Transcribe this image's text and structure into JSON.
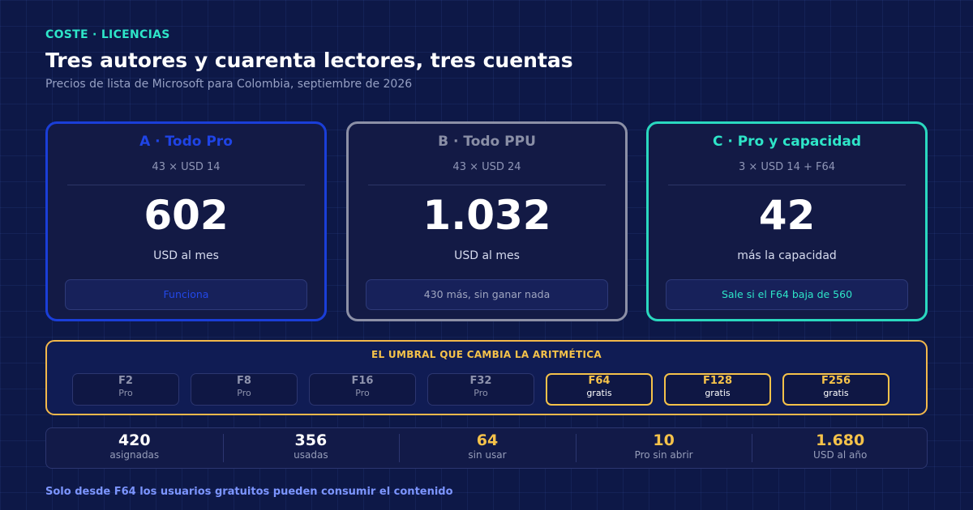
{
  "header": {
    "kicker": "COSTE · LICENCIAS",
    "title": "Tres autores y cuarenta lectores, tres cuentas",
    "subtitle": "Precios de lista de Microsoft para Colombia, septiembre de 2026"
  },
  "cards": [
    {
      "name": "A · Todo Pro",
      "formula": "43 × USD 14",
      "value": "602",
      "unit": "USD al mes",
      "verdict": "Funciona",
      "accent": "#1a3ed8"
    },
    {
      "name": "B · Todo PPU",
      "formula": "43 × USD 24",
      "value": "1.032",
      "unit": "USD al mes",
      "verdict": "430 más, sin ganar nada",
      "accent": "#8c90a6"
    },
    {
      "name": "C · Pro y capacidad",
      "formula": "3 × USD 14 + F64",
      "value": "42",
      "unit": "más la capacidad",
      "verdict": "Sale si el F64 baja de 560",
      "accent": "#2ad8bf"
    }
  ],
  "threshold": {
    "title": "EL UMBRAL QUE CAMBIA LA ARITMÉTICA",
    "tiers": [
      {
        "name": "F2",
        "note": "Pro",
        "free": false
      },
      {
        "name": "F8",
        "note": "Pro",
        "free": false
      },
      {
        "name": "F16",
        "note": "Pro",
        "free": false
      },
      {
        "name": "F32",
        "note": "Pro",
        "free": false
      },
      {
        "name": "F64",
        "note": "gratis",
        "free": true
      },
      {
        "name": "F128",
        "note": "gratis",
        "free": true
      },
      {
        "name": "F256",
        "note": "gratis",
        "free": true
      }
    ],
    "highlight_color": "#f5c24a"
  },
  "stats": [
    {
      "value": "420",
      "label": "asignadas",
      "highlight": false
    },
    {
      "value": "356",
      "label": "usadas",
      "highlight": false
    },
    {
      "value": "64",
      "label": "sin usar",
      "highlight": true
    },
    {
      "value": "10",
      "label": "Pro sin abrir",
      "highlight": true
    },
    {
      "value": "1.680",
      "label": "USD al año",
      "highlight": true
    }
  ],
  "footnote": "Solo desde F64 los usuarios gratuitos pueden consumir el contenido"
}
